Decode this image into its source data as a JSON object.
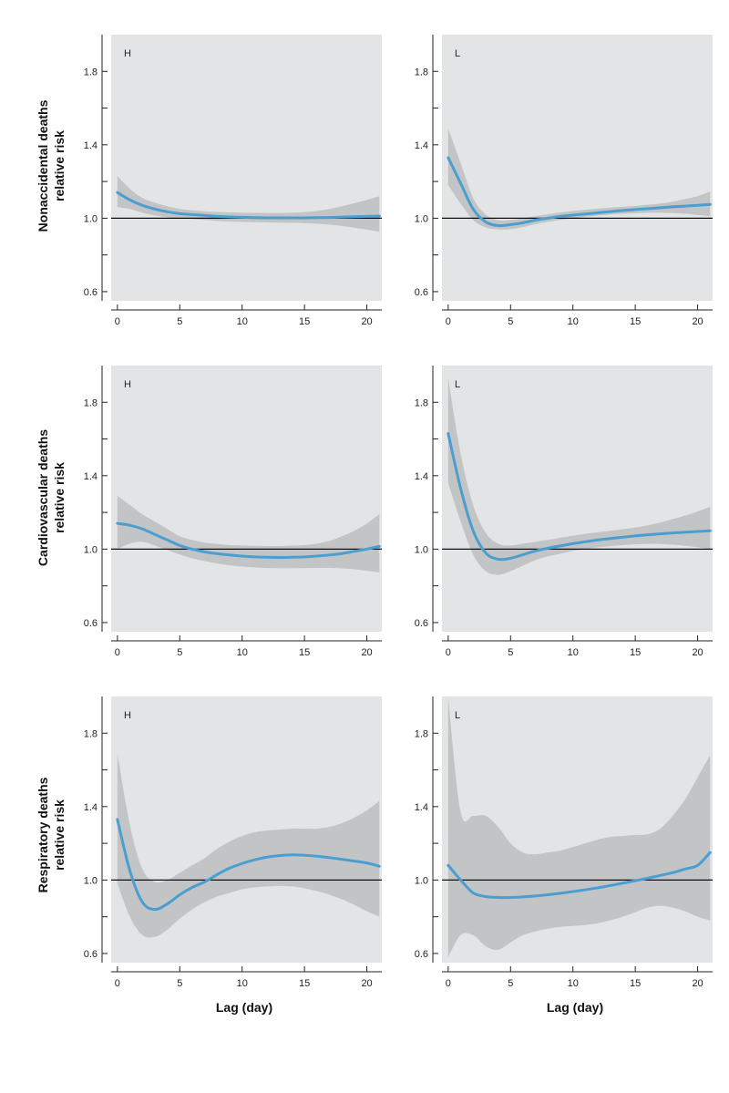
{
  "colors": {
    "panel_bg": "#e3e4e6",
    "ci_band": "#c3c4c6",
    "curve": "#4a9fd0",
    "reference_line": "#111111",
    "axis": "#222222"
  },
  "y_axis_labels": [
    [
      "Nonaccidental deaths",
      "relative risk"
    ],
    [
      "Cardiovascular deaths",
      "relative risk"
    ],
    [
      "Respiratory deaths",
      "relative risk"
    ]
  ],
  "x_axis_label": "Lag (day)",
  "chart_data": [
    {
      "type": "line",
      "panel_label": "H",
      "outcome": "Nonaccidental deaths",
      "xlim": [
        -0.5,
        21.2
      ],
      "ylim": [
        0.55,
        2.0
      ],
      "xticks": [
        0,
        5,
        10,
        15,
        20
      ],
      "xtick_labels": [
        "0",
        "5",
        "10",
        "15",
        "20"
      ],
      "yticks": [
        0.6,
        0.8,
        1.0,
        1.2,
        1.4,
        1.6,
        1.8
      ],
      "ytick_labels": [
        "0.6",
        "",
        "1.0",
        "",
        "1.4",
        "",
        "1.8"
      ],
      "reference_y": 1.0,
      "x": [
        0,
        1,
        2,
        3,
        4,
        5,
        6,
        7,
        8,
        9,
        10,
        11,
        12,
        13,
        14,
        15,
        16,
        17,
        18,
        19,
        20,
        21
      ],
      "estimate": [
        1.14,
        1.1,
        1.07,
        1.05,
        1.035,
        1.025,
        1.02,
        1.015,
        1.01,
        1.007,
        1.005,
        1.003,
        1.002,
        1.002,
        1.002,
        1.002,
        1.003,
        1.004,
        1.006,
        1.008,
        1.01,
        1.012
      ],
      "ci_lower": [
        1.06,
        1.05,
        1.03,
        1.015,
        1.005,
        1.0,
        0.995,
        0.99,
        0.985,
        0.982,
        0.98,
        0.978,
        0.977,
        0.976,
        0.975,
        0.973,
        0.97,
        0.965,
        0.958,
        0.948,
        0.938,
        0.926
      ],
      "ci_upper": [
        1.23,
        1.16,
        1.11,
        1.085,
        1.065,
        1.05,
        1.043,
        1.038,
        1.034,
        1.032,
        1.03,
        1.029,
        1.028,
        1.028,
        1.03,
        1.033,
        1.04,
        1.05,
        1.065,
        1.082,
        1.1,
        1.12
      ]
    },
    {
      "type": "line",
      "panel_label": "L",
      "outcome": "Nonaccidental deaths",
      "xlim": [
        -0.5,
        21.2
      ],
      "ylim": [
        0.55,
        2.0
      ],
      "xticks": [
        0,
        5,
        10,
        15,
        20
      ],
      "xtick_labels": [
        "0",
        "5",
        "10",
        "15",
        "20"
      ],
      "yticks": [
        0.6,
        0.8,
        1.0,
        1.2,
        1.4,
        1.6,
        1.8
      ],
      "ytick_labels": [
        "0.6",
        "",
        "1.0",
        "",
        "1.4",
        "",
        "1.8"
      ],
      "reference_y": 1.0,
      "x": [
        0,
        1,
        2,
        3,
        4,
        5,
        6,
        7,
        8,
        9,
        10,
        11,
        12,
        13,
        14,
        15,
        16,
        17,
        18,
        19,
        20,
        21
      ],
      "estimate": [
        1.33,
        1.19,
        1.05,
        0.98,
        0.96,
        0.965,
        0.975,
        0.99,
        1.0,
        1.01,
        1.017,
        1.023,
        1.03,
        1.036,
        1.042,
        1.047,
        1.052,
        1.057,
        1.062,
        1.066,
        1.07,
        1.075
      ],
      "ci_lower": [
        1.18,
        1.08,
        0.99,
        0.95,
        0.94,
        0.94,
        0.952,
        0.968,
        0.98,
        0.99,
        1.0,
        1.008,
        1.014,
        1.02,
        1.024,
        1.027,
        1.03,
        1.03,
        1.028,
        1.024,
        1.018,
        1.01
      ],
      "ci_upper": [
        1.49,
        1.3,
        1.11,
        1.02,
        0.99,
        0.99,
        1.0,
        1.012,
        1.022,
        1.032,
        1.04,
        1.046,
        1.052,
        1.058,
        1.062,
        1.067,
        1.073,
        1.08,
        1.09,
        1.105,
        1.12,
        1.145
      ]
    },
    {
      "type": "line",
      "panel_label": "H",
      "outcome": "Cardiovascular deaths",
      "xlim": [
        -0.5,
        21.2
      ],
      "ylim": [
        0.55,
        2.0
      ],
      "xticks": [
        0,
        5,
        10,
        15,
        20
      ],
      "xtick_labels": [
        "0",
        "5",
        "10",
        "15",
        "20"
      ],
      "yticks": [
        0.6,
        0.8,
        1.0,
        1.2,
        1.4,
        1.6,
        1.8
      ],
      "ytick_labels": [
        "0.6",
        "",
        "1.0",
        "",
        "1.4",
        "",
        "1.8"
      ],
      "reference_y": 1.0,
      "x": [
        0,
        1,
        2,
        3,
        4,
        5,
        6,
        7,
        8,
        9,
        10,
        11,
        12,
        13,
        14,
        15,
        16,
        17,
        18,
        19,
        20,
        21
      ],
      "estimate": [
        1.14,
        1.13,
        1.11,
        1.08,
        1.05,
        1.02,
        1.0,
        0.985,
        0.975,
        0.968,
        0.962,
        0.958,
        0.956,
        0.955,
        0.956,
        0.958,
        0.962,
        0.968,
        0.976,
        0.988,
        1.0,
        1.015
      ],
      "ci_lower": [
        1.0,
        1.03,
        1.04,
        1.02,
        0.995,
        0.97,
        0.95,
        0.935,
        0.922,
        0.912,
        0.905,
        0.9,
        0.897,
        0.896,
        0.896,
        0.897,
        0.898,
        0.898,
        0.895,
        0.89,
        0.882,
        0.873
      ],
      "ci_upper": [
        1.29,
        1.24,
        1.19,
        1.15,
        1.11,
        1.07,
        1.05,
        1.035,
        1.028,
        1.022,
        1.02,
        1.018,
        1.017,
        1.017,
        1.019,
        1.022,
        1.03,
        1.045,
        1.07,
        1.1,
        1.14,
        1.19
      ]
    },
    {
      "type": "line",
      "panel_label": "L",
      "outcome": "Cardiovascular deaths",
      "xlim": [
        -0.5,
        21.2
      ],
      "ylim": [
        0.55,
        2.0
      ],
      "xticks": [
        0,
        5,
        10,
        15,
        20
      ],
      "xtick_labels": [
        "0",
        "5",
        "10",
        "15",
        "20"
      ],
      "yticks": [
        0.6,
        0.8,
        1.0,
        1.2,
        1.4,
        1.6,
        1.8
      ],
      "ytick_labels": [
        "0.6",
        "",
        "1.0",
        "",
        "1.4",
        "",
        "1.8"
      ],
      "reference_y": 1.0,
      "x": [
        0,
        1,
        2,
        3,
        4,
        5,
        6,
        7,
        8,
        9,
        10,
        11,
        12,
        13,
        14,
        15,
        16,
        17,
        18,
        19,
        20,
        21
      ],
      "estimate": [
        1.63,
        1.33,
        1.1,
        0.98,
        0.945,
        0.95,
        0.97,
        0.99,
        1.005,
        1.018,
        1.03,
        1.04,
        1.05,
        1.058,
        1.065,
        1.072,
        1.078,
        1.083,
        1.088,
        1.092,
        1.096,
        1.1
      ],
      "ci_lower": [
        1.36,
        1.15,
        0.97,
        0.88,
        0.86,
        0.88,
        0.91,
        0.94,
        0.96,
        0.975,
        0.99,
        1.0,
        1.01,
        1.016,
        1.022,
        1.026,
        1.028,
        1.028,
        1.024,
        1.018,
        1.01,
        1.0
      ],
      "ci_upper": [
        1.93,
        1.52,
        1.24,
        1.09,
        1.03,
        1.02,
        1.03,
        1.04,
        1.05,
        1.062,
        1.073,
        1.083,
        1.092,
        1.1,
        1.108,
        1.118,
        1.13,
        1.145,
        1.163,
        1.183,
        1.205,
        1.23
      ]
    },
    {
      "type": "line",
      "panel_label": "H",
      "outcome": "Respiratory deaths",
      "xlim": [
        -0.5,
        21.2
      ],
      "ylim": [
        0.55,
        2.0
      ],
      "xticks": [
        0,
        5,
        10,
        15,
        20
      ],
      "xtick_labels": [
        "0",
        "5",
        "10",
        "15",
        "20"
      ],
      "yticks": [
        0.6,
        0.8,
        1.0,
        1.2,
        1.4,
        1.6,
        1.8
      ],
      "ytick_labels": [
        "0.6",
        "",
        "1.0",
        "",
        "1.4",
        "",
        "1.8"
      ],
      "reference_y": 1.0,
      "x": [
        0,
        1,
        2,
        3,
        4,
        5,
        6,
        7,
        8,
        9,
        10,
        11,
        12,
        13,
        14,
        15,
        16,
        17,
        18,
        19,
        20,
        21
      ],
      "estimate": [
        1.33,
        1.05,
        0.88,
        0.84,
        0.87,
        0.92,
        0.96,
        0.99,
        1.03,
        1.065,
        1.09,
        1.11,
        1.125,
        1.133,
        1.137,
        1.135,
        1.13,
        1.122,
        1.113,
        1.103,
        1.093,
        1.075
      ],
      "ci_lower": [
        0.98,
        0.8,
        0.7,
        0.69,
        0.73,
        0.79,
        0.84,
        0.88,
        0.91,
        0.93,
        0.95,
        0.96,
        0.965,
        0.968,
        0.965,
        0.955,
        0.94,
        0.92,
        0.895,
        0.865,
        0.83,
        0.8
      ],
      "ci_upper": [
        1.69,
        1.3,
        1.06,
        0.99,
        1.0,
        1.04,
        1.08,
        1.12,
        1.17,
        1.21,
        1.24,
        1.26,
        1.27,
        1.275,
        1.28,
        1.28,
        1.28,
        1.29,
        1.31,
        1.34,
        1.38,
        1.43
      ]
    },
    {
      "type": "line",
      "panel_label": "L",
      "outcome": "Respiratory deaths",
      "xlim": [
        -0.5,
        21.2
      ],
      "ylim": [
        0.55,
        2.0
      ],
      "xticks": [
        0,
        5,
        10,
        15,
        20
      ],
      "xtick_labels": [
        "0",
        "5",
        "10",
        "15",
        "20"
      ],
      "yticks": [
        0.6,
        0.8,
        1.0,
        1.2,
        1.4,
        1.6,
        1.8
      ],
      "ytick_labels": [
        "0.6",
        "",
        "1.0",
        "",
        "1.4",
        "",
        "1.8"
      ],
      "reference_y": 1.0,
      "x": [
        0,
        1,
        2,
        3,
        4,
        5,
        6,
        7,
        8,
        9,
        10,
        11,
        12,
        13,
        14,
        15,
        16,
        17,
        18,
        19,
        20,
        21
      ],
      "estimate": [
        1.08,
        1.0,
        0.93,
        0.91,
        0.905,
        0.905,
        0.908,
        0.913,
        0.92,
        0.928,
        0.937,
        0.947,
        0.958,
        0.97,
        0.983,
        0.996,
        1.01,
        1.025,
        1.04,
        1.06,
        1.08,
        1.15
      ],
      "ci_lower": [
        0.58,
        0.7,
        0.7,
        0.64,
        0.62,
        0.66,
        0.7,
        0.72,
        0.735,
        0.745,
        0.75,
        0.755,
        0.765,
        0.78,
        0.8,
        0.825,
        0.85,
        0.86,
        0.85,
        0.83,
        0.8,
        0.78
      ],
      "ci_upper": [
        1.99,
        1.37,
        1.35,
        1.35,
        1.29,
        1.2,
        1.15,
        1.14,
        1.15,
        1.16,
        1.18,
        1.2,
        1.22,
        1.235,
        1.24,
        1.245,
        1.25,
        1.28,
        1.35,
        1.44,
        1.56,
        1.68
      ]
    }
  ]
}
